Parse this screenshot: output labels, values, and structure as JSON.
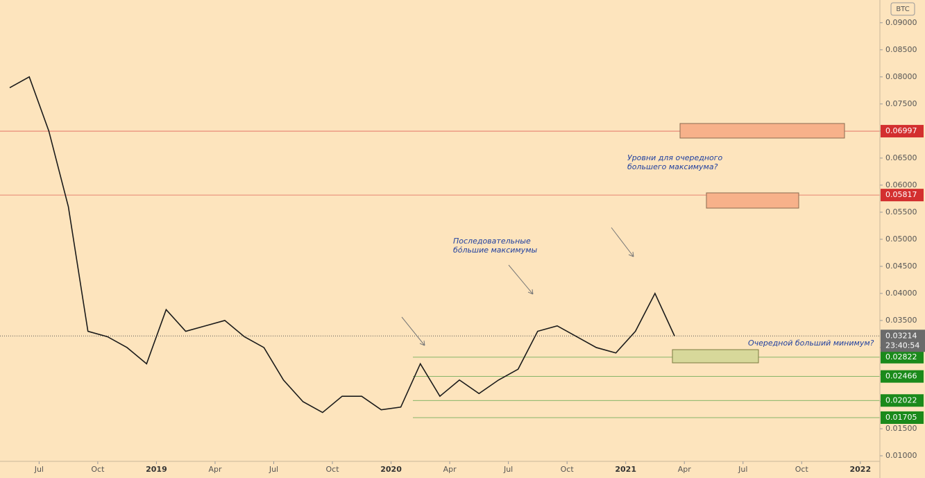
{
  "chart_data": {
    "type": "line",
    "unit_label": "BTC",
    "color": "#1a1a1a",
    "x": [
      "2018-05",
      "2018-06",
      "2018-07",
      "2018-08",
      "2018-09",
      "2018-10",
      "2018-11",
      "2018-12",
      "2019-01",
      "2019-02",
      "2019-03",
      "2019-04",
      "2019-05",
      "2019-06",
      "2019-07",
      "2019-08",
      "2019-09",
      "2019-10",
      "2019-11",
      "2019-12",
      "2020-01",
      "2020-02",
      "2020-03",
      "2020-04",
      "2020-05",
      "2020-06",
      "2020-07",
      "2020-08",
      "2020-09",
      "2020-10",
      "2020-11",
      "2020-12",
      "2021-01",
      "2021-02",
      "2021-03"
    ],
    "values": [
      0.078,
      0.08,
      0.07,
      0.056,
      0.033,
      0.032,
      0.03,
      0.027,
      0.037,
      0.033,
      0.034,
      0.035,
      0.032,
      0.03,
      0.024,
      0.02,
      0.018,
      0.021,
      0.021,
      0.0185,
      0.019,
      0.027,
      0.021,
      0.024,
      0.0215,
      0.024,
      0.026,
      0.033,
      0.034,
      0.032,
      0.03,
      0.029,
      0.033,
      0.04,
      0.03214
    ],
    "xlim": [
      "2018-05",
      "2022-02"
    ],
    "xticks": [
      {
        "value": "2018-07",
        "label": "Jul"
      },
      {
        "value": "2018-10",
        "label": "Oct"
      },
      {
        "value": "2019-01",
        "label": "2019"
      },
      {
        "value": "2019-04",
        "label": "Apr"
      },
      {
        "value": "2019-07",
        "label": "Jul"
      },
      {
        "value": "2019-10",
        "label": "Oct"
      },
      {
        "value": "2020-01",
        "label": "2020"
      },
      {
        "value": "2020-04",
        "label": "Apr"
      },
      {
        "value": "2020-07",
        "label": "Jul"
      },
      {
        "value": "2020-10",
        "label": "Oct"
      },
      {
        "value": "2021-01",
        "label": "2021"
      },
      {
        "value": "2021-04",
        "label": "Apr"
      },
      {
        "value": "2021-07",
        "label": "Jul"
      },
      {
        "value": "2021-10",
        "label": "Oct"
      },
      {
        "value": "2022-01",
        "label": "2022"
      }
    ],
    "ylim": [
      0.0059,
      0.0942
    ],
    "yticks": [
      {
        "value": 0.01,
        "label": "0.01000"
      },
      {
        "value": 0.015,
        "label": "0.01500"
      },
      {
        "value": 0.02,
        "label": "0.02000"
      },
      {
        "value": 0.025,
        "label": "0.02500"
      },
      {
        "value": 0.03,
        "label": "0.03000"
      },
      {
        "value": 0.035,
        "label": "0.03500"
      },
      {
        "value": 0.04,
        "label": "0.04000"
      },
      {
        "value": 0.045,
        "label": "0.04500"
      },
      {
        "value": 0.05,
        "label": "0.05000"
      },
      {
        "value": 0.055,
        "label": "0.05500"
      },
      {
        "value": 0.06,
        "label": "0.06000"
      },
      {
        "value": 0.065,
        "label": "0.06500"
      },
      {
        "value": 0.07,
        "label": "0.07000"
      },
      {
        "value": 0.075,
        "label": "0.07500"
      },
      {
        "value": 0.08,
        "label": "0.08000"
      },
      {
        "value": 0.085,
        "label": "0.08500"
      },
      {
        "value": 0.09,
        "label": "0.09000"
      }
    ],
    "levels": [
      {
        "value": 0.06997,
        "label": "0.06997",
        "color": "#d32f2f"
      },
      {
        "value": 0.05817,
        "label": "0.05817",
        "color": "#d32f2f"
      },
      {
        "value": 0.02822,
        "label": "0.02822",
        "color": "#1b8a1b"
      },
      {
        "value": 0.02466,
        "label": "0.02466",
        "color": "#1b8a1b"
      },
      {
        "value": 0.02022,
        "label": "0.02022",
        "color": "#1b8a1b"
      },
      {
        "value": 0.01705,
        "label": "0.01705",
        "color": "#1b8a1b"
      }
    ],
    "last_price": {
      "value": 0.03214,
      "label": "0.03214",
      "countdown": "23:40:54"
    },
    "annotations": [
      "Уровни для очередного\nбольшего максимума?",
      "Последовательные\nбóльшие максимумы",
      "Очередной больший минимум?"
    ]
  }
}
